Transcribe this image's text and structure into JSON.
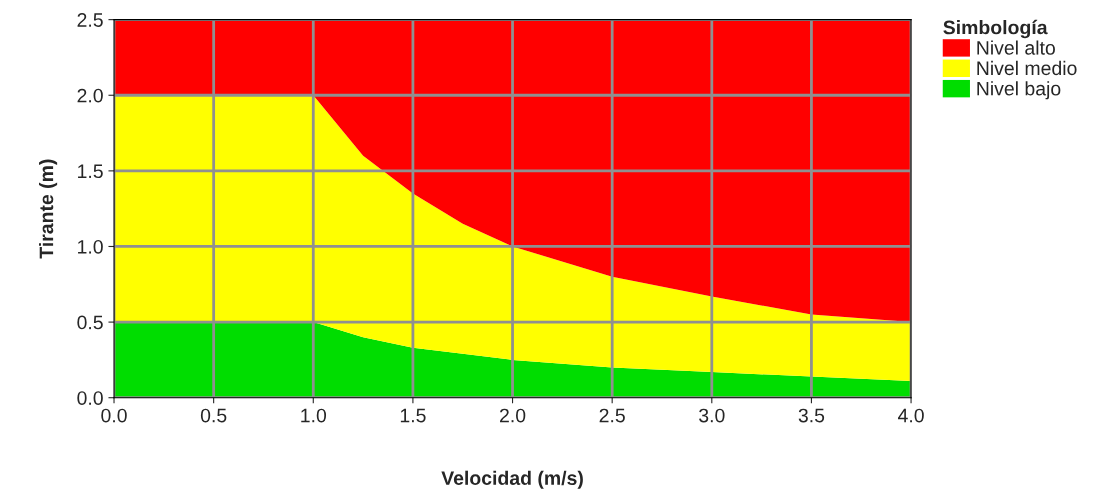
{
  "chart_data": {
    "type": "area",
    "stacked": true,
    "xlabel": "Velocidad (m/s)",
    "ylabel": "Tirante (m)",
    "legend_title": "Simbología",
    "x": [
      0,
      0.5,
      1,
      1.25,
      1.5,
      1.75,
      2,
      2.5,
      3,
      3.5,
      4
    ],
    "series": [
      {
        "name": "Nivel bajo",
        "color": "#00dd00",
        "values": [
          0.5,
          0.5,
          0.5,
          0.4,
          0.33,
          0.29,
          0.25,
          0.2,
          0.17,
          0.14,
          0.11
        ]
      },
      {
        "name": "Nivel medio",
        "color": "#ffff00",
        "values": [
          1.5,
          1.5,
          1.5,
          1.2,
          1.02,
          0.86,
          0.75,
          0.6,
          0.5,
          0.41,
          0.39
        ]
      },
      {
        "name": "Nivel alto",
        "color": "#ff0000",
        "values": [
          0.5,
          0.5,
          0.5,
          0.9,
          1.15,
          1.35,
          1.5,
          1.7,
          1.83,
          1.95,
          2.0
        ]
      }
    ],
    "xlim": [
      0,
      4
    ],
    "ylim": [
      0,
      2.5
    ],
    "xticks": [
      {
        "value": 0,
        "label": "0.0"
      },
      0.5,
      {
        "value": 1,
        "label": "1.0"
      },
      1.5,
      {
        "value": 2,
        "label": "2.0"
      },
      2.5,
      {
        "value": 3,
        "label": "3.0"
      },
      3.5,
      {
        "value": 4,
        "label": "4.0"
      }
    ],
    "yticks": [
      {
        "value": 0,
        "label": "0.0"
      },
      0.5,
      {
        "value": 1,
        "label": "1.0"
      },
      1.5,
      {
        "value": 2,
        "label": "2.0"
      },
      2.5
    ],
    "grid": true,
    "legend": "top right"
  }
}
